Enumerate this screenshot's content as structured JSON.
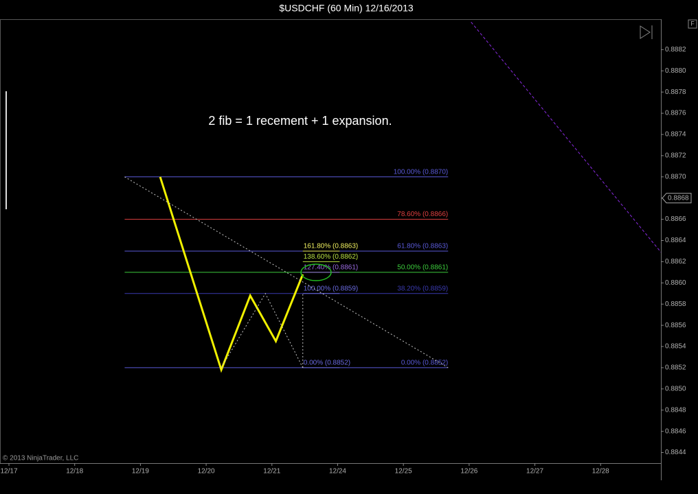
{
  "chart_data": {
    "type": "line",
    "title": "$USDCHF (60 Min)  12/16/2013",
    "annotation": "2 fib = 1 recement + 1 expansion.",
    "copyright": "© 2013 NinjaTrader, LLC",
    "button": "F",
    "xlim": [
      -0.136,
      9.917
    ],
    "xticks": [
      {
        "value": 0,
        "label": "12/17"
      },
      {
        "value": 1,
        "label": "12/18"
      },
      {
        "value": 2,
        "label": "12/19"
      },
      {
        "value": 3,
        "label": "12/20"
      },
      {
        "value": 4,
        "label": "12/21"
      },
      {
        "value": 5,
        "label": "12/24"
      },
      {
        "value": 6,
        "label": "12/25"
      },
      {
        "value": 7,
        "label": "12/26"
      },
      {
        "value": 8,
        "label": "12/27"
      },
      {
        "value": 9,
        "label": "12/28"
      }
    ],
    "ylim": [
      0.8843,
      0.8885
    ],
    "yticks": [
      0.8844,
      0.8846,
      0.8848,
      {
        "value": 0.885,
        "label": "0.8850"
      },
      0.8852,
      0.8854,
      0.8856,
      0.8858,
      {
        "value": 0.886,
        "label": "0.8860"
      },
      0.8862,
      0.8864,
      0.8866,
      0.8868,
      {
        "value": 0.887,
        "label": "0.8870"
      },
      0.8872,
      0.8874,
      0.8876,
      0.8878,
      {
        "value": 0.888,
        "label": "0.8880"
      },
      0.8882
    ],
    "current_price": {
      "value": 0.8868,
      "label": "0.8868"
    },
    "series": [
      {
        "color": "#f0f000",
        "style": "solid",
        "x": [
          2.3,
          3.23,
          3.67,
          4.06,
          4.47
        ],
        "values": [
          0.887,
          0.88518,
          0.88588,
          0.88545,
          0.88608
        ]
      },
      {
        "color": "#c8c8c8",
        "style": "dotted",
        "x": [
          3.23,
          3.9,
          4.47
        ],
        "values": [
          0.8852,
          0.8859,
          0.8852
        ]
      },
      {
        "color": "#c8c8c8",
        "style": "dotted",
        "x": [
          4.47,
          4.47
        ],
        "values": [
          0.8852,
          0.8859
        ]
      },
      {
        "color": "#c8c8c8",
        "style": "dotted",
        "x": [
          1.76,
          6.68
        ],
        "values": [
          0.887,
          0.8852
        ]
      },
      {
        "color": "#8a2be2",
        "style": "dashed",
        "x": [
          7.03,
          9.917
        ],
        "values": [
          0.88846,
          0.88629
        ]
      }
    ],
    "retracement": {
      "x": [
        1.76,
        6.68
      ],
      "levels": [
        {
          "value": 0.887,
          "label": "100.00% (0.8870)",
          "color": "#5a5ad8"
        },
        {
          "value": 0.8866,
          "label": "78.60% (0.8866)",
          "color": "#e04040"
        },
        {
          "value": 0.8863,
          "label": "61.80% (0.8863)",
          "color": "#5a5ad8"
        },
        {
          "value": 0.8861,
          "label": "50.00% (0.8861)",
          "color": "#3ccc3c"
        },
        {
          "value": 0.8859,
          "label": "38.20% (0.8859)",
          "color": "#3a3ab0"
        },
        {
          "value": 0.8852,
          "label": "0.00% (0.8852)",
          "color": "#5a5ad8"
        }
      ]
    },
    "expansion": {
      "x": [
        4.47,
        5.03
      ],
      "levels": [
        {
          "value": 0.8863,
          "label": "161.80% (0.8863)",
          "color": "#f0f060"
        },
        {
          "value": 0.8862,
          "label": "138.60% (0.8862)",
          "color": "#b8e040"
        },
        {
          "value": 0.8861,
          "label": "127.40% (0.8861)",
          "color": "#9a6ae0"
        },
        {
          "value": 0.8859,
          "label": "100.00% (0.8859)",
          "color": "#6a6ae0"
        },
        {
          "value": 0.8852,
          "label": "0.00% (0.8852)",
          "color": "#6a6ae0"
        }
      ]
    }
  }
}
